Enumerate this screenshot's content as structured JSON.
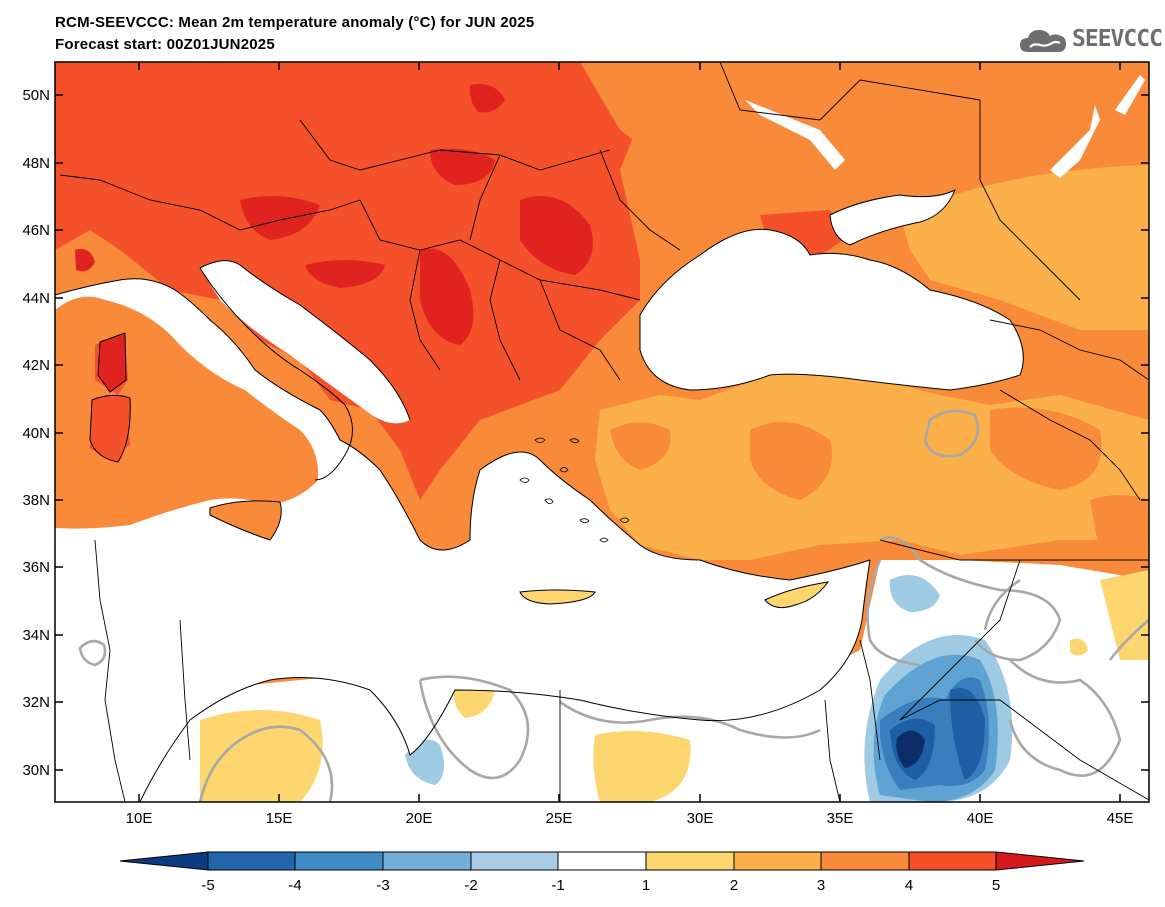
{
  "header": {
    "title": "RCM-SEEVCCC: Mean 2m temperature anomaly (°C) for JUN 2025",
    "subtitle": "Forecast start: 00Z01JUN2025",
    "logo_text": "SEEVCCC"
  },
  "map": {
    "lat_labels": [
      "50N",
      "48N",
      "46N",
      "44N",
      "42N",
      "40N",
      "38N",
      "36N",
      "34N",
      "32N",
      "30N"
    ],
    "lon_labels": [
      "10E",
      "15E",
      "20E",
      "25E",
      "30E",
      "35E",
      "40E",
      "45E"
    ],
    "colors": {
      "sea": "#ffffff",
      "anom_1_2": "#fdd66f",
      "anom_2_3": "#fbb04a",
      "anom_3_4": "#f98a3a",
      "anom_4_5": "#f4512b",
      "anom_gt5": "#e0231e",
      "anom_m1_m2": "#9ecae3",
      "anom_m2_m3": "#5ea3d2",
      "anom_m3_m4": "#3a7fbd",
      "anom_m4_m5": "#1d5ea5",
      "anom_lt_m5": "#0b2e6b",
      "contour_zero": "#a8a8a8"
    }
  },
  "colorbar": {
    "labels": [
      "-5",
      "-4",
      "-3",
      "-2",
      "-1",
      "1",
      "2",
      "3",
      "4",
      "5"
    ],
    "colors": [
      "#0b3b82",
      "#2166ac",
      "#3f8cc7",
      "#74add8",
      "#a9cde8",
      "#ffffff",
      "#fdd66f",
      "#fbb04a",
      "#f98a3a",
      "#f4512b",
      "#d7191c"
    ]
  }
}
